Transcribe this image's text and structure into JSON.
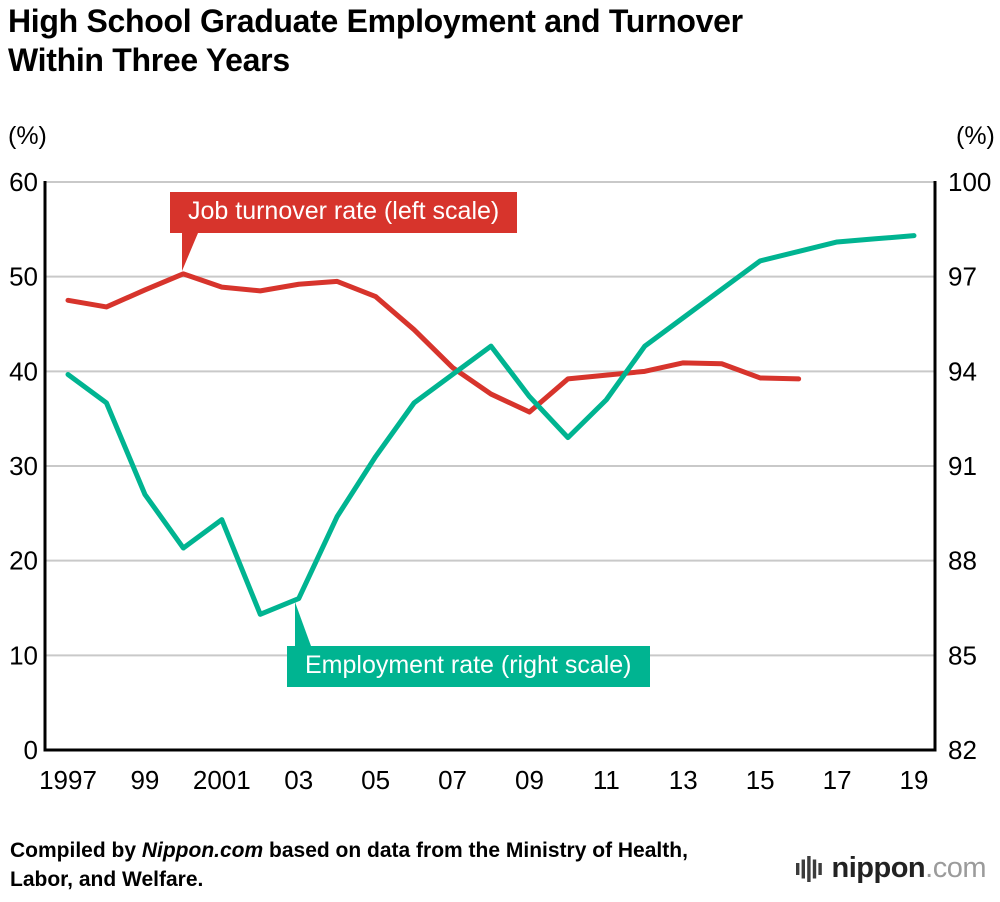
{
  "chart_data": {
    "type": "line",
    "title_line1": "High School Graduate Employment and Turnover",
    "title_line2": "Within Three Years",
    "left_axis": {
      "unit": "(%)",
      "min": 0,
      "max": 60,
      "ticks": [
        60,
        50,
        40,
        30,
        20,
        10,
        0
      ]
    },
    "right_axis": {
      "unit": "(%)",
      "min": 82,
      "max": 100,
      "ticks": [
        100,
        97,
        94,
        91,
        88,
        85,
        82
      ]
    },
    "x_axis": {
      "tick_years": [
        1997,
        1999,
        2001,
        2003,
        2005,
        2007,
        2009,
        2011,
        2013,
        2015,
        2017,
        2019
      ],
      "tick_labels": [
        "1997",
        "99",
        "2001",
        "03",
        "05",
        "07",
        "09",
        "11",
        "13",
        "15",
        "17",
        "19"
      ]
    },
    "series": [
      {
        "name": "Job turnover rate (left scale)",
        "axis": "left",
        "color": "#d7342c",
        "years": [
          1997,
          1998,
          1999,
          2000,
          2001,
          2002,
          2003,
          2004,
          2005,
          2006,
          2007,
          2008,
          2009,
          2010,
          2011,
          2012,
          2013,
          2014,
          2015,
          2016
        ],
        "values": [
          47.5,
          46.8,
          48.6,
          50.3,
          48.9,
          48.5,
          49.2,
          49.5,
          47.9,
          44.4,
          40.4,
          37.6,
          35.7,
          39.2,
          39.6,
          40.0,
          40.9,
          40.8,
          39.3,
          39.2
        ]
      },
      {
        "name": "Employment rate (right scale)",
        "axis": "right",
        "color": "#00b491",
        "years": [
          1997,
          1998,
          1999,
          2000,
          2001,
          2002,
          2003,
          2004,
          2005,
          2006,
          2007,
          2008,
          2009,
          2010,
          2011,
          2012,
          2013,
          2014,
          2015,
          2016,
          2017,
          2018,
          2019
        ],
        "values": [
          93.9,
          93.0,
          90.1,
          88.4,
          89.3,
          86.3,
          86.8,
          89.4,
          91.3,
          93.0,
          93.9,
          94.8,
          93.2,
          91.9,
          93.1,
          94.8,
          95.7,
          96.6,
          97.5,
          97.8,
          98.1,
          98.2,
          98.3
        ]
      }
    ],
    "grid_color": "#c9c9c9",
    "axis_color": "#000000",
    "legend_position": "callouts-on-plot"
  },
  "footer": {
    "prefix": "Compiled by ",
    "source": "Nippon.com",
    "suffix": " based on data from the Ministry of Health, Labor, and Welfare."
  },
  "logo": {
    "brand": "nippon",
    "tld": ".com"
  }
}
